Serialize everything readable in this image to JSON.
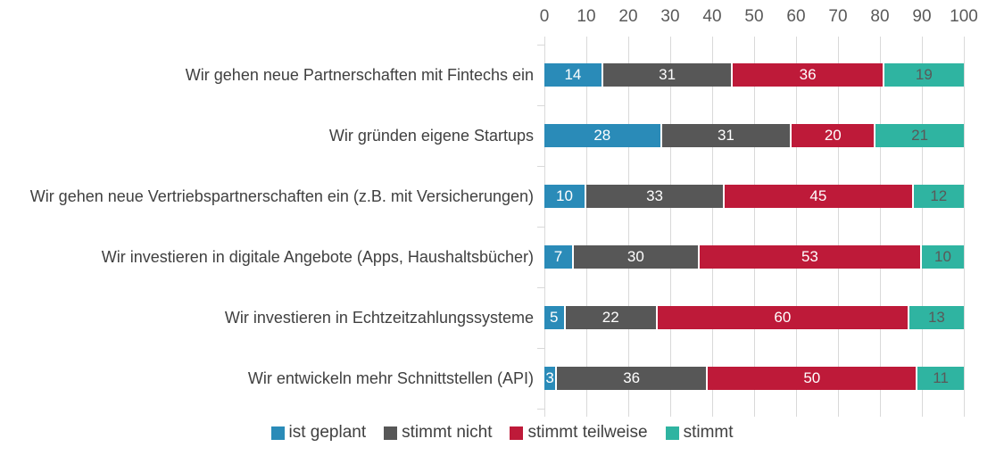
{
  "chart_data": {
    "type": "bar",
    "subtype": "horizontal-stacked",
    "title": "",
    "categories": [
      "Wir gehen neue Partnerschaften mit Fintechs ein",
      "Wir gründen eigene Startups",
      "Wir gehen neue Vertriebspartnerschaften ein (z.B. mit Versicherungen)",
      "Wir investieren in digitale Angebote (Apps, Haushaltsbücher)",
      "Wir investieren in Echtzeitzahlungssysteme",
      "Wir entwickeln mehr Schnittstellen (API)"
    ],
    "series": [
      {
        "name": "ist geplant",
        "color": "#2A8BB8",
        "value_label_color": "#FFFFFF",
        "values": [
          14,
          28,
          10,
          7,
          5,
          3
        ]
      },
      {
        "name": "stimmt nicht",
        "color": "#575757",
        "value_label_color": "#FFFFFF",
        "values": [
          31,
          31,
          33,
          30,
          22,
          36
        ]
      },
      {
        "name": "stimmt teilweise",
        "color": "#BE1A39",
        "value_label_color": "#FFFFFF",
        "values": [
          36,
          20,
          45,
          53,
          60,
          50
        ]
      },
      {
        "name": "stimmt",
        "color": "#2FB4A1",
        "value_label_color": "#595959",
        "values": [
          19,
          21,
          12,
          10,
          13,
          11
        ]
      }
    ],
    "x_axis": {
      "position": "top",
      "min": 0,
      "max": 100,
      "ticks": [
        0,
        10,
        20,
        30,
        40,
        50,
        60,
        70,
        80,
        90,
        100
      ]
    },
    "grid": true,
    "gridline_color": "#D9D9D9",
    "axis_text_color": "#595959",
    "category_text_color": "#404040",
    "legend_position": "bottom",
    "legend": [
      "ist geplant",
      "stimmt nicht",
      "stimmt teilweise",
      "stimmt"
    ]
  }
}
